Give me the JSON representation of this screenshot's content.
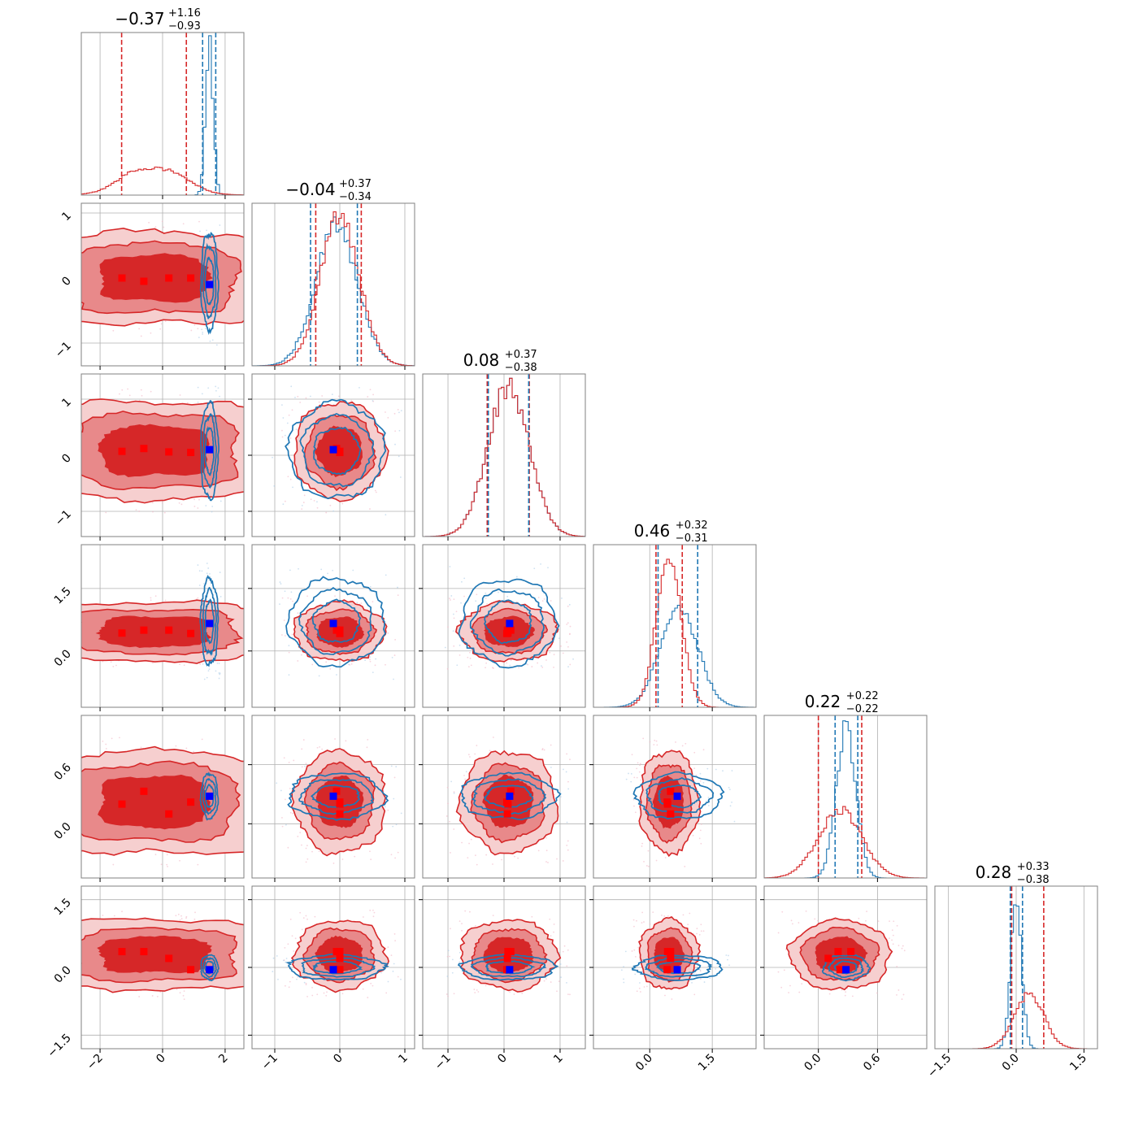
{
  "chart_data": {
    "type": "corner",
    "n_params": 6,
    "grid": true,
    "colors": {
      "red": "#d62728",
      "red_mid": "#e8898a",
      "red_light": "#f6cfcf",
      "blue": "#1f77b4",
      "truth_blue": "#0000ff",
      "truth_red": "#ff0000",
      "grid": "#b0b0b0",
      "axes": "#808080"
    },
    "axes": [
      {
        "range": [
          -2.6,
          2.6
        ],
        "ticks": [
          -2,
          0,
          2
        ],
        "tick_labels": [
          "−2",
          "0",
          "2"
        ]
      },
      {
        "range": [
          -1.35,
          1.15
        ],
        "ticks": [
          -1,
          0,
          1
        ],
        "tick_labels": [
          "−1",
          "0",
          "1"
        ]
      },
      {
        "range": [
          -1.45,
          1.45
        ],
        "ticks": [
          -1,
          0,
          1
        ],
        "tick_labels": [
          "−1",
          "0",
          "1"
        ]
      },
      {
        "range": [
          -1.35,
          2.55
        ],
        "ticks": [
          0.0,
          1.5
        ],
        "tick_labels": [
          "0.0",
          "1.5"
        ]
      },
      {
        "range": [
          -0.55,
          1.1
        ],
        "ticks": [
          0.0,
          0.6
        ],
        "tick_labels": [
          "0.0",
          "0.6"
        ]
      },
      {
        "range": [
          -1.8,
          1.8
        ],
        "ticks": [
          -1.5,
          0.0,
          1.5
        ],
        "tick_labels": [
          "−1.5",
          "0.0",
          "1.5"
        ]
      }
    ],
    "titles": [
      {
        "value": "−0.37",
        "plus": "+1.16",
        "minus": "−0.93"
      },
      {
        "value": "−0.04",
        "plus": "+0.37",
        "minus": "−0.34"
      },
      {
        "value": "0.08",
        "plus": "+0.37",
        "minus": "−0.38"
      },
      {
        "value": "0.46",
        "plus": "+0.32",
        "minus": "−0.31"
      },
      {
        "value": "0.22",
        "plus": "+0.22",
        "minus": "−0.22"
      },
      {
        "value": "0.28",
        "plus": "+0.33",
        "minus": "−0.38"
      }
    ],
    "red_posterior": {
      "marginals": [
        {
          "type": "flat",
          "low": -1.4,
          "high": 0.9,
          "edge": 0.35,
          "quantiles": [
            -1.31,
            0.76
          ]
        },
        {
          "type": "gauss",
          "mean": 0.0,
          "sd": 0.3,
          "quantiles": [
            -0.37,
            0.33
          ]
        },
        {
          "type": "gauss",
          "mean": 0.08,
          "sd": 0.37,
          "quantiles": [
            -0.3,
            0.45
          ]
        },
        {
          "type": "gauss",
          "mean": 0.46,
          "sd": 0.3,
          "quantiles": [
            0.15,
            0.78
          ]
        },
        {
          "type": "gauss",
          "mean": 0.22,
          "sd": 0.22,
          "quantiles": [
            0.0,
            0.44
          ]
        },
        {
          "type": "gauss",
          "mean": 0.28,
          "sd": 0.33,
          "quantiles": [
            -0.1,
            0.61
          ]
        }
      ],
      "truths": [
        [
          -1.3,
          0.0,
          0.07,
          0.43,
          0.2,
          0.35
        ],
        [
          -0.6,
          -0.05,
          0.12,
          0.5,
          0.33,
          0.35
        ],
        [
          0.2,
          0.0,
          0.06,
          0.5,
          0.1,
          0.2
        ],
        [
          0.9,
          0.0,
          0.05,
          0.42,
          0.22,
          -0.05
        ]
      ]
    },
    "blue_posterior": {
      "marginals": [
        {
          "type": "gauss",
          "mean": 1.5,
          "sd": 0.12,
          "quantiles": [
            1.28,
            1.7
          ]
        },
        {
          "type": "gauss",
          "mean": -0.05,
          "sd": 0.32,
          "quantiles": [
            -0.45,
            0.27
          ]
        },
        {
          "type": "gauss",
          "mean": 0.08,
          "sd": 0.37,
          "quantiles": [
            -0.28,
            0.44
          ]
        },
        {
          "type": "gauss",
          "mean": 0.7,
          "sd": 0.45,
          "quantiles": [
            0.2,
            1.15
          ]
        },
        {
          "type": "gauss",
          "mean": 0.28,
          "sd": 0.1,
          "quantiles": [
            0.17,
            0.4
          ]
        },
        {
          "type": "gauss",
          "mean": 0.0,
          "sd": 0.12,
          "quantiles": [
            -0.13,
            0.14
          ]
        }
      ],
      "truth": [
        1.5,
        -0.1,
        0.1,
        0.66,
        0.28,
        -0.05
      ]
    }
  }
}
